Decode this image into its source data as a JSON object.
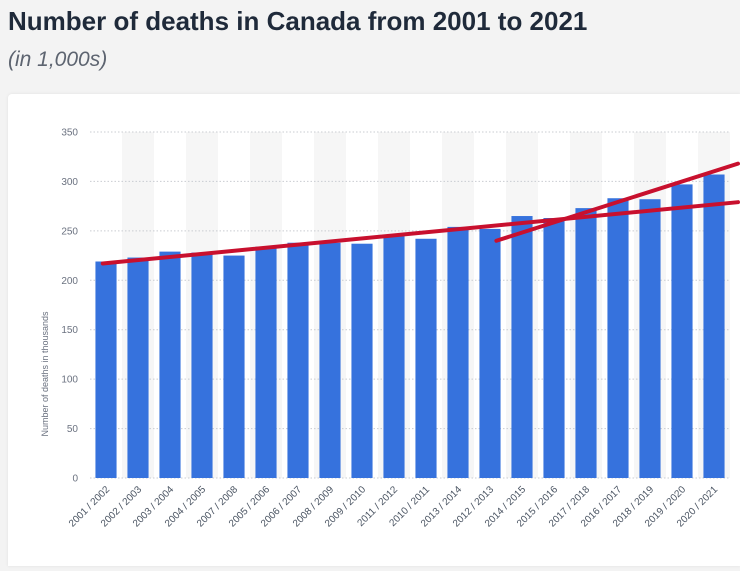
{
  "header": {
    "title": "Number of deaths in Canada from 2001 to 2021",
    "subtitle": "(in 1,000s)"
  },
  "chart_data": {
    "type": "bar",
    "title": "Number of deaths in Canada from 2001 to 2021",
    "subtitle": "(in 1,000s)",
    "xlabel": "",
    "ylabel": "Number of deaths in thousands",
    "ylim": [
      0,
      350
    ],
    "yticks": [
      0,
      50,
      100,
      150,
      200,
      250,
      300,
      350
    ],
    "grid": true,
    "categories": [
      "2001 / 2002",
      "2002 / 2003",
      "2003 / 2004",
      "2004 / 2005",
      "2007 / 2008",
      "2005 / 2006",
      "2006 / 2007",
      "2008 / 2009",
      "2009 / 2010",
      "2011 / 2012",
      "2010 / 2011",
      "2013 / 2014",
      "2012 / 2013",
      "2014 / 2015",
      "2015 / 2016",
      "2017 / 2018",
      "2016 / 2017",
      "2018 / 2019",
      "2019 / 2020",
      "2020 / 2021"
    ],
    "values": [
      219,
      223,
      229,
      228,
      225,
      234,
      238,
      238,
      237,
      246,
      242,
      254,
      252,
      265,
      263,
      273,
      283,
      282,
      297,
      307
    ],
    "bar_color": "#3672dd",
    "annotations": [
      {
        "type": "line",
        "color": "#c8102e",
        "from": {
          "category_index": -0.1,
          "y": 217
        },
        "to": {
          "category_index": 19.75,
          "y": 279
        }
      },
      {
        "type": "line",
        "color": "#c8102e",
        "from": {
          "category_index": 12.2,
          "y": 240
        },
        "to": {
          "category_index": 19.75,
          "y": 318
        }
      }
    ]
  }
}
